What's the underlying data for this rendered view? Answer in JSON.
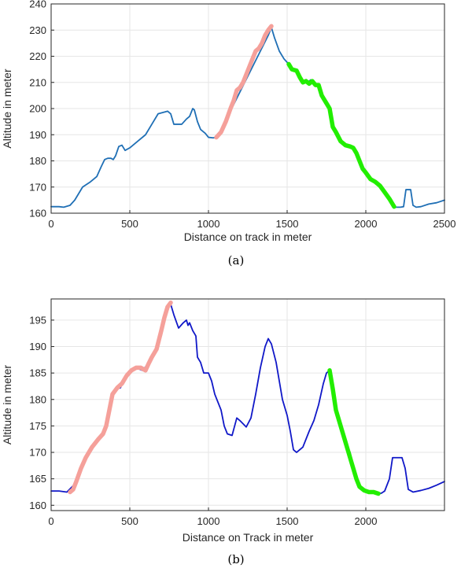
{
  "chart_data": [
    {
      "type": "line",
      "caption": "(a)",
      "xlabel": "Distance on track in meter",
      "ylabel": "Altitude in meter",
      "xlim": [
        0,
        2500
      ],
      "ylim": [
        160,
        240
      ],
      "xticks": [
        0,
        500,
        1000,
        1500,
        2000,
        2500
      ],
      "yticks": [
        160,
        170,
        180,
        190,
        200,
        210,
        220,
        230,
        240
      ],
      "grid": true,
      "series": [
        {
          "color": "#1f6fb5",
          "style": "thin",
          "points": [
            [
              0,
              162.5
            ],
            [
              50,
              162.5
            ],
            [
              80,
              162.3
            ],
            [
              120,
              163
            ],
            [
              150,
              165
            ],
            [
              200,
              170
            ],
            [
              250,
              172
            ],
            [
              290,
              174
            ],
            [
              320,
              178
            ],
            [
              340,
              180.5
            ],
            [
              360,
              181
            ],
            [
              380,
              181
            ],
            [
              395,
              180.5
            ],
            [
              410,
              182
            ],
            [
              430,
              185.5
            ],
            [
              450,
              186
            ],
            [
              470,
              184
            ],
            [
              500,
              185
            ],
            [
              550,
              187.5
            ],
            [
              600,
              190
            ],
            [
              640,
              194
            ],
            [
              680,
              198
            ],
            [
              710,
              198.5
            ],
            [
              740,
              199
            ],
            [
              760,
              198
            ],
            [
              780,
              194
            ],
            [
              800,
              194
            ],
            [
              830,
              194
            ],
            [
              860,
              196
            ],
            [
              880,
              197
            ],
            [
              900,
              200
            ],
            [
              910,
              199.5
            ],
            [
              930,
              195
            ],
            [
              950,
              192
            ],
            [
              980,
              190.5
            ],
            [
              1000,
              189
            ],
            [
              1030,
              188.8
            ],
            [
              1050,
              189
            ],
            [
              1060,
              189.5
            ],
            [
              1380,
              228
            ],
            [
              1400,
              231
            ],
            [
              1420,
              227
            ],
            [
              1450,
              222
            ],
            [
              1480,
              219
            ],
            [
              1510,
              217
            ],
            [
              1520,
              216
            ],
            [
              1530,
              215
            ],
            [
              1550,
              214.5
            ],
            [
              1570,
              213
            ],
            [
              1590,
              210
            ],
            [
              1610,
              210.5
            ],
            [
              1630,
              210
            ],
            [
              1650,
              211
            ],
            [
              1670,
              209.5
            ],
            [
              1690,
              209
            ],
            [
              1710,
              206
            ],
            [
              1740,
              202
            ],
            [
              1760,
              201
            ],
            [
              1780,
              197
            ],
            [
              1790,
              193
            ],
            [
              1820,
              190
            ],
            [
              1850,
              187
            ],
            [
              1870,
              186
            ],
            [
              1890,
              185.5
            ],
            [
              1910,
              185
            ],
            [
              1930,
              183.5
            ],
            [
              1950,
              181
            ],
            [
              1970,
              179
            ],
            [
              2000,
              175.5
            ],
            [
              2030,
              173
            ],
            [
              2080,
              171
            ],
            [
              2120,
              168
            ],
            [
              2150,
              165
            ],
            [
              2170,
              163
            ],
            [
              2190,
              162.3
            ],
            [
              2220,
              162.3
            ],
            [
              2240,
              162.5
            ],
            [
              2255,
              169
            ],
            [
              2285,
              169
            ],
            [
              2300,
              163
            ],
            [
              2320,
              162.3
            ],
            [
              2350,
              162.5
            ],
            [
              2400,
              163.5
            ],
            [
              2450,
              164
            ],
            [
              2500,
              165
            ]
          ]
        },
        {
          "color": "#f5a09a",
          "style": "thick",
          "points": [
            [
              1050,
              189
            ],
            [
              1080,
              191
            ],
            [
              1110,
              195
            ],
            [
              1140,
              200
            ],
            [
              1160,
              203
            ],
            [
              1180,
              207
            ],
            [
              1200,
              208
            ],
            [
              1220,
              210
            ],
            [
              1240,
              213
            ],
            [
              1260,
              216
            ],
            [
              1280,
              219
            ],
            [
              1300,
              222
            ],
            [
              1320,
              223
            ],
            [
              1340,
              225
            ],
            [
              1360,
              228
            ],
            [
              1380,
              230
            ],
            [
              1400,
              231.5
            ]
          ]
        },
        {
          "color": "#22ee00",
          "style": "thick",
          "points": [
            [
              1510,
              217
            ],
            [
              1530,
              215
            ],
            [
              1560,
              214.5
            ],
            [
              1580,
              212
            ],
            [
              1600,
              210
            ],
            [
              1620,
              210.5
            ],
            [
              1640,
              209.5
            ],
            [
              1660,
              210.5
            ],
            [
              1680,
              209
            ],
            [
              1700,
              209
            ],
            [
              1720,
              205
            ],
            [
              1750,
              202
            ],
            [
              1770,
              200
            ],
            [
              1790,
              193
            ],
            [
              1810,
              191
            ],
            [
              1840,
              187.5
            ],
            [
              1870,
              186
            ],
            [
              1900,
              185.5
            ],
            [
              1920,
              185
            ],
            [
              1940,
              183
            ],
            [
              1960,
              180
            ],
            [
              1980,
              177
            ],
            [
              2000,
              175.5
            ],
            [
              2030,
              173
            ],
            [
              2060,
              172
            ],
            [
              2090,
              170.5
            ],
            [
              2120,
              168
            ],
            [
              2150,
              165.5
            ],
            [
              2170,
              163.5
            ],
            [
              2180,
              162.5
            ]
          ]
        }
      ]
    },
    {
      "type": "line",
      "caption": "(b)",
      "xlabel": "Distance on Track in meter",
      "ylabel": "Altitude in meter",
      "xlim": [
        0,
        2500
      ],
      "ylim": [
        159,
        199
      ],
      "xticks": [
        0,
        500,
        1000,
        1500,
        2000
      ],
      "yticks": [
        160,
        165,
        170,
        175,
        180,
        185,
        190,
        195
      ],
      "grid": true,
      "series": [
        {
          "color": "#1018c8",
          "style": "thin",
          "points": [
            [
              0,
              162.7
            ],
            [
              50,
              162.7
            ],
            [
              100,
              162.5
            ],
            [
              150,
              164
            ],
            [
              200,
              168
            ],
            [
              260,
              171
            ],
            [
              310,
              173
            ],
            [
              350,
              175
            ],
            [
              370,
              178
            ],
            [
              390,
              181
            ],
            [
              410,
              182
            ],
            [
              440,
              182.2
            ],
            [
              470,
              184
            ],
            [
              500,
              185
            ],
            [
              540,
              186
            ],
            [
              580,
              185.5
            ],
            [
              610,
              186.5
            ],
            [
              640,
              188
            ],
            [
              660,
              189
            ],
            [
              700,
              192
            ],
            [
              730,
              196
            ],
            [
              750,
              197.5
            ],
            [
              760,
              198
            ],
            [
              780,
              196
            ],
            [
              810,
              193.5
            ],
            [
              840,
              194.5
            ],
            [
              860,
              195
            ],
            [
              870,
              194
            ],
            [
              880,
              194.5
            ],
            [
              900,
              193
            ],
            [
              920,
              192
            ],
            [
              930,
              188
            ],
            [
              950,
              187
            ],
            [
              970,
              185
            ],
            [
              1000,
              185
            ],
            [
              1020,
              183.5
            ],
            [
              1040,
              181
            ],
            [
              1080,
              178
            ],
            [
              1100,
              175
            ],
            [
              1120,
              173.5
            ],
            [
              1150,
              173.2
            ],
            [
              1180,
              176.5
            ],
            [
              1200,
              176
            ],
            [
              1240,
              174.8
            ],
            [
              1270,
              176.5
            ],
            [
              1300,
              181
            ],
            [
              1330,
              186
            ],
            [
              1360,
              190
            ],
            [
              1380,
              191.5
            ],
            [
              1400,
              190.5
            ],
            [
              1430,
              187
            ],
            [
              1470,
              180
            ],
            [
              1500,
              177
            ],
            [
              1520,
              174
            ],
            [
              1540,
              170.5
            ],
            [
              1560,
              170
            ],
            [
              1600,
              171
            ],
            [
              1640,
              174
            ],
            [
              1670,
              176
            ],
            [
              1700,
              179
            ],
            [
              1730,
              183
            ],
            [
              1750,
              185
            ],
            [
              1770,
              185.5
            ],
            [
              1800,
              180
            ],
            [
              1830,
              176
            ],
            [
              1870,
              172
            ],
            [
              1900,
              170
            ],
            [
              1920,
              167.5
            ],
            [
              1950,
              164
            ],
            [
              1990,
              162.7
            ],
            [
              2010,
              162.5
            ],
            [
              2050,
              162.5
            ],
            [
              2080,
              162.2
            ],
            [
              2100,
              162.3
            ],
            [
              2120,
              162.7
            ],
            [
              2150,
              165
            ],
            [
              2170,
              169
            ],
            [
              2190,
              169
            ],
            [
              2230,
              169
            ],
            [
              2250,
              167
            ],
            [
              2270,
              163
            ],
            [
              2300,
              162.5
            ],
            [
              2350,
              162.8
            ],
            [
              2400,
              163.2
            ],
            [
              2450,
              163.8
            ],
            [
              2500,
              164.5
            ]
          ]
        },
        {
          "color": "#f5a09a",
          "style": "thick",
          "points": [
            [
              120,
              162.5
            ],
            [
              140,
              163
            ],
            [
              160,
              164.5
            ],
            [
              190,
              167
            ],
            [
              220,
              169
            ],
            [
              260,
              171
            ],
            [
              300,
              172.5
            ],
            [
              330,
              173.5
            ],
            [
              350,
              175
            ],
            [
              370,
              178
            ],
            [
              390,
              181
            ],
            [
              420,
              182.2
            ],
            [
              450,
              183
            ],
            [
              480,
              184.5
            ],
            [
              510,
              185.5
            ],
            [
              540,
              186
            ],
            [
              570,
              186
            ],
            [
              600,
              185.5
            ],
            [
              620,
              186.8
            ],
            [
              640,
              188
            ],
            [
              670,
              189.5
            ],
            [
              700,
              193
            ],
            [
              720,
              195.5
            ],
            [
              740,
              197.5
            ],
            [
              760,
              198.3
            ]
          ]
        },
        {
          "color": "#22ee00",
          "style": "thick",
          "points": [
            [
              1770,
              185.5
            ],
            [
              1790,
              182
            ],
            [
              1810,
              178
            ],
            [
              1830,
              176
            ],
            [
              1850,
              174
            ],
            [
              1870,
              172
            ],
            [
              1890,
              170
            ],
            [
              1910,
              168
            ],
            [
              1940,
              165
            ],
            [
              1960,
              163.5
            ],
            [
              1990,
              162.8
            ],
            [
              2020,
              162.5
            ],
            [
              2050,
              162.5
            ],
            [
              2080,
              162.2
            ]
          ]
        }
      ]
    }
  ]
}
